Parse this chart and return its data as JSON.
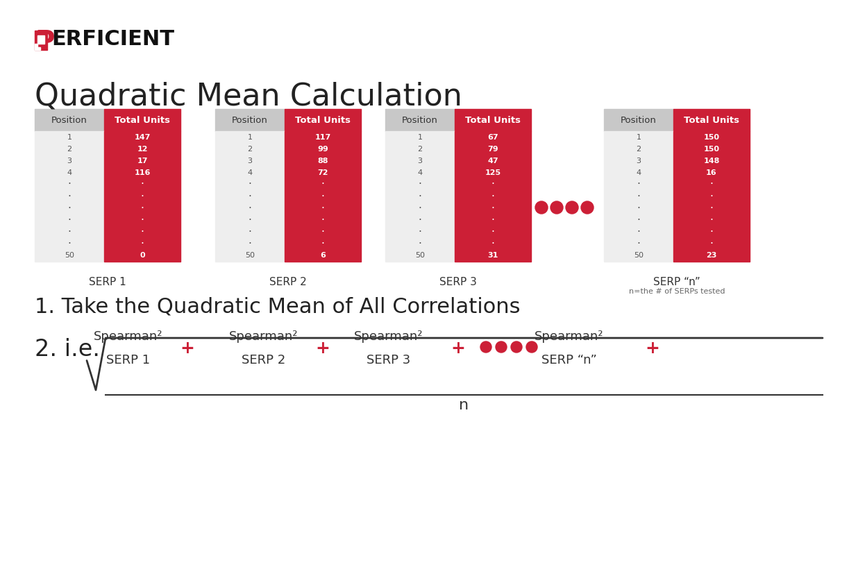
{
  "title": "Quadratic Mean Calculation",
  "bg_color": "#ffffff",
  "red_color": "#cc1f36",
  "light_gray": "#d9d9d9",
  "mid_gray": "#c0c0c0",
  "dark_gray": "#555555",
  "header_gray": "#c8c8c8",
  "serps": [
    {
      "label": "SERP 1",
      "positions": [
        "1",
        "2",
        "3",
        "4",
        "·",
        "·",
        "·",
        "·",
        "·",
        "·",
        "50"
      ],
      "units": [
        "147",
        "12",
        "17",
        "116",
        "·",
        "·",
        "·",
        "·",
        "·",
        "·",
        "0"
      ]
    },
    {
      "label": "SERP 2",
      "positions": [
        "1",
        "2",
        "3",
        "4",
        "·",
        "·",
        "·",
        "·",
        "·",
        "·",
        "50"
      ],
      "units": [
        "117",
        "99",
        "88",
        "72",
        "·",
        "·",
        "·",
        "·",
        "·",
        "·",
        "6"
      ]
    },
    {
      "label": "SERP 3",
      "positions": [
        "1",
        "2",
        "3",
        "4",
        "·",
        "·",
        "·",
        "·",
        "·",
        "·",
        "50"
      ],
      "units": [
        "67",
        "79",
        "47",
        "125",
        "·",
        "·",
        "·",
        "·",
        "·",
        "·",
        "31"
      ]
    },
    {
      "label": "SERP “n”",
      "sublabel": "n=the # of SERPs tested",
      "positions": [
        "1",
        "2",
        "3",
        "4",
        "·",
        "·",
        "·",
        "·",
        "·",
        "·",
        "50"
      ],
      "units": [
        "150",
        "150",
        "148",
        "16",
        "·",
        "·",
        "·",
        "·",
        "·",
        "·",
        "23"
      ]
    }
  ],
  "step1_label": "1. Take the Quadratic Mean of All Correlations",
  "step2_label": "2. i.e.",
  "formula_parts": [
    "Spearman²\nSERP 1",
    "Spearman²\nSERP 2",
    "Spearman²\nSERP 3",
    "Spearman²\nSERP “n”"
  ],
  "formula_denom": "n"
}
